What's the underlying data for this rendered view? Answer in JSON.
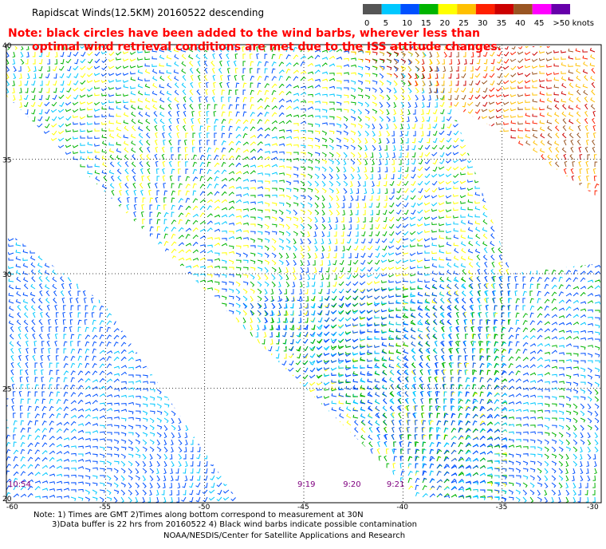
{
  "title": "Rapidscat Winds(12.5KM) 20160522 descending",
  "note": {
    "line1": "Note: black circles have been added to the wind barbs, wherever less than",
    "line2": "optimal wind retrieval conditions are met due to the ISS attitude changes."
  },
  "legend": {
    "labels": [
      "0",
      "5",
      "10",
      "15",
      "20",
      "25",
      "30",
      "35",
      "40",
      "45",
      ">50 knots"
    ],
    "colors": [
      "#555555",
      "#00c8ff",
      "#0050ff",
      "#00b400",
      "#ffff00",
      "#ffc000",
      "#ff2000",
      "#cc0000",
      "#995522",
      "#ff00ff",
      "#6600aa"
    ]
  },
  "map": {
    "lat_range": [
      20,
      40
    ],
    "lon_range": [
      -60,
      -30
    ],
    "lat_labels": [
      "40",
      "35",
      "30",
      "25",
      "20"
    ],
    "lon_labels": [
      "-60",
      "-55",
      "-50",
      "-45",
      "-40",
      "-35",
      "-30"
    ],
    "times": [
      {
        "label": "10:54",
        "lon": -60
      },
      {
        "label": "9:19",
        "lon": -45
      },
      {
        "label": "9:20",
        "lon": -42.7
      },
      {
        "label": "9:21",
        "lon": -40.5
      }
    ]
  },
  "footer": {
    "line1": "Note: 1) Times are GMT 2)Times along bottom correspond to measurement at 30N",
    "line2": "3)Data buffer is 22 hrs from 20160522 4) Black wind barbs indicate possible contamination",
    "line3": "NOAA/NESDIS/Center for Satellite Applications and Research"
  }
}
